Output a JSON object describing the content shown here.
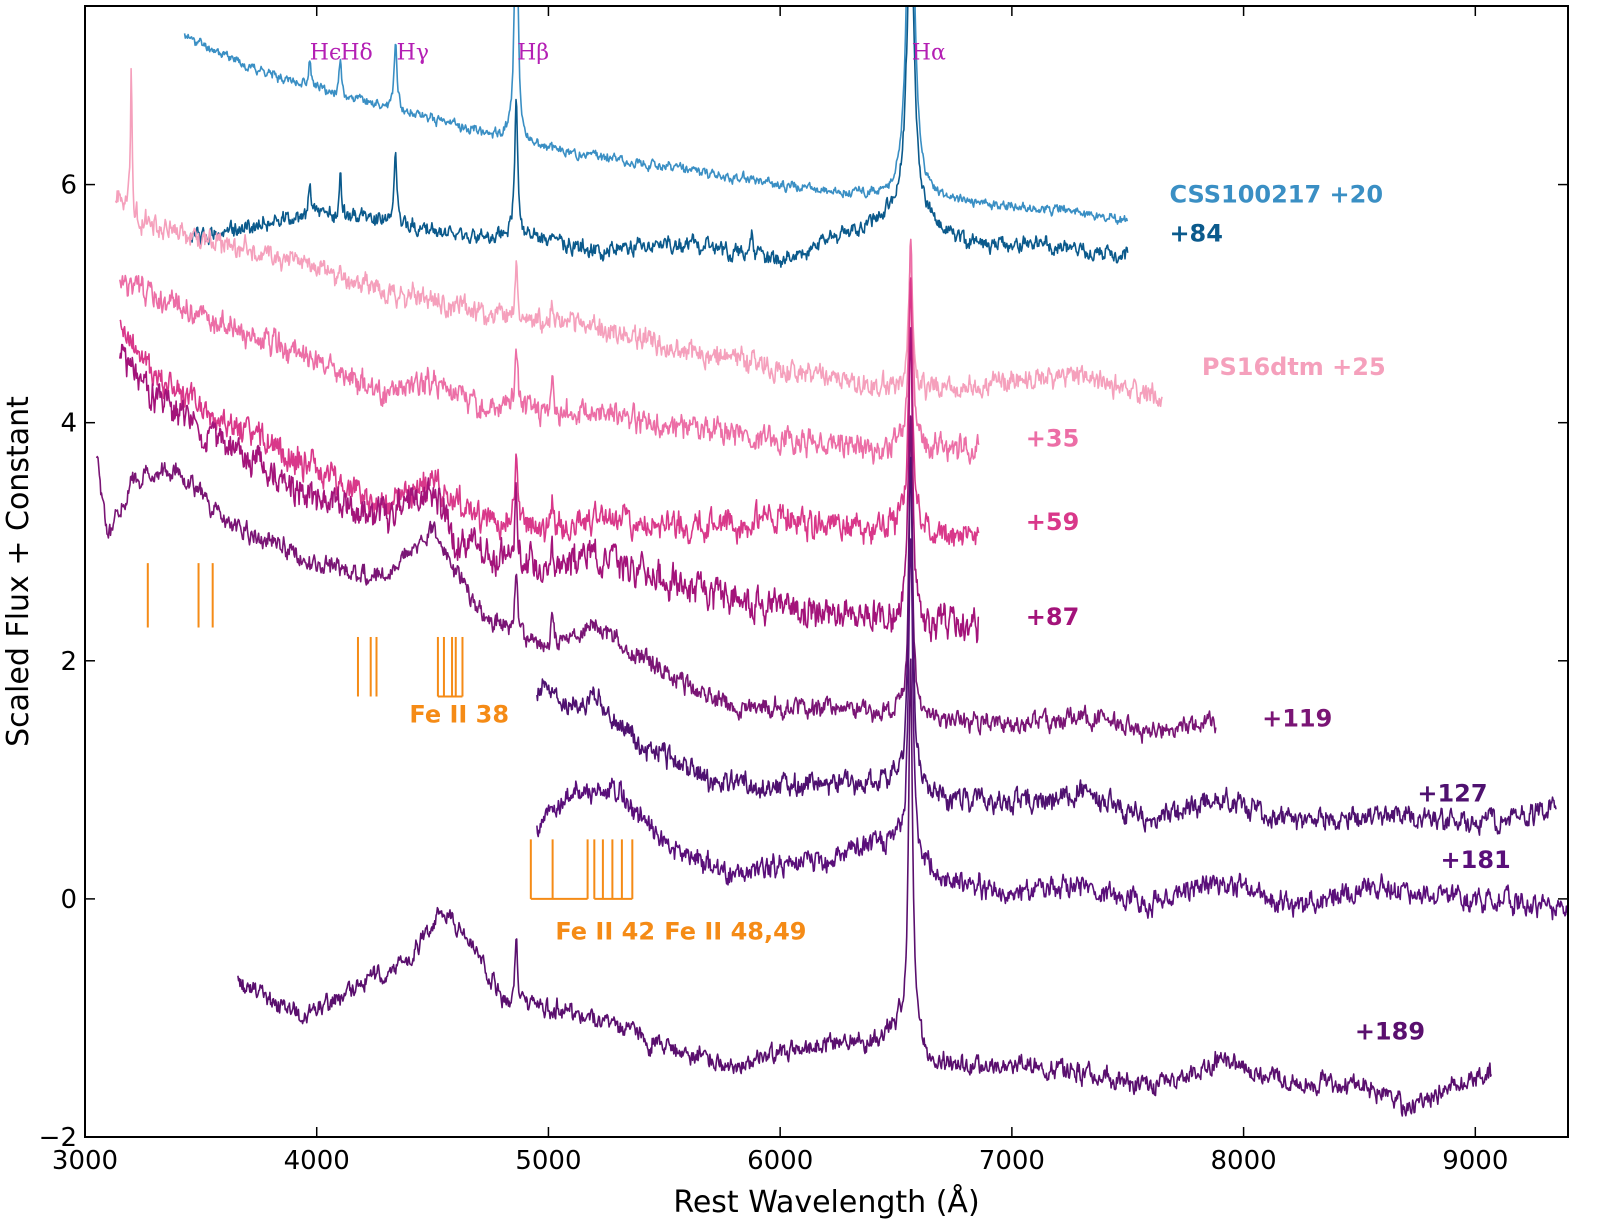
{
  "chart_data": {
    "type": "line",
    "title": "",
    "xlabel": "Rest Wavelength (Å)",
    "ylabel": "Scaled Flux + Constant",
    "xlim": [
      3000,
      9400
    ],
    "ylim": [
      -2.0,
      7.5
    ],
    "xticks": [
      3000,
      4000,
      5000,
      6000,
      7000,
      8000,
      9000
    ],
    "xtick_labels": [
      "3000",
      "4000",
      "5000",
      "6000",
      "7000",
      "8000",
      "9000"
    ],
    "yticks": [
      -2,
      0,
      2,
      4,
      6
    ],
    "ytick_labels": [
      "−2",
      "0",
      "2",
      "4",
      "6"
    ],
    "grid": false,
    "series": [
      {
        "name": "CSS100217 +20",
        "label": "CSS100217 +20",
        "label_x": 7680,
        "label_y": 5.85,
        "color": "#3a8fc4",
        "noise": 0.03,
        "seed": 11,
        "points": [
          [
            3430,
            7.25
          ],
          [
            3700,
            7.0
          ],
          [
            4000,
            6.8
          ],
          [
            4500,
            6.55
          ],
          [
            5000,
            6.3
          ],
          [
            5500,
            6.15
          ],
          [
            6000,
            6.0
          ],
          [
            6400,
            5.9
          ],
          [
            6800,
            5.85
          ],
          [
            7200,
            5.78
          ],
          [
            7500,
            5.7
          ]
        ],
        "lines": [
          [
            3970,
            0.22,
            14
          ],
          [
            4102,
            0.28,
            14
          ],
          [
            4340,
            0.55,
            16
          ],
          [
            4861,
            2.2,
            18
          ],
          [
            6563,
            3.6,
            35
          ]
        ]
      },
      {
        "name": "CSS100217 +84",
        "label": "+84",
        "label_x": 7680,
        "label_y": 5.52,
        "color": "#0b5a8c",
        "noise": 0.05,
        "seed": 12,
        "points": [
          [
            3450,
            5.55
          ],
          [
            3700,
            5.65
          ],
          [
            4000,
            5.75
          ],
          [
            4300,
            5.7
          ],
          [
            4600,
            5.55
          ],
          [
            4900,
            5.55
          ],
          [
            5200,
            5.45
          ],
          [
            5600,
            5.5
          ],
          [
            6000,
            5.35
          ],
          [
            6300,
            5.6
          ],
          [
            6550,
            5.8
          ],
          [
            6800,
            5.5
          ],
          [
            7100,
            5.5
          ],
          [
            7300,
            5.45
          ],
          [
            7500,
            5.4
          ]
        ],
        "lines": [
          [
            3970,
            0.3,
            12
          ],
          [
            4102,
            0.35,
            12
          ],
          [
            4340,
            0.6,
            14
          ],
          [
            4861,
            1.2,
            16
          ],
          [
            6563,
            2.6,
            35
          ],
          [
            5876,
            0.2,
            15
          ]
        ]
      },
      {
        "name": "PS16dtm +25",
        "label": "PS16dtm +25",
        "label_x": 7820,
        "label_y": 4.4,
        "color": "#f5a0bc",
        "noise": 0.07,
        "seed": 21,
        "points": [
          [
            3130,
            5.9
          ],
          [
            3250,
            5.7
          ],
          [
            3500,
            5.55
          ],
          [
            4000,
            5.3
          ],
          [
            4500,
            5.0
          ],
          [
            4800,
            4.9
          ],
          [
            5200,
            4.8
          ],
          [
            5600,
            4.6
          ],
          [
            6000,
            4.45
          ],
          [
            6400,
            4.3
          ],
          [
            6800,
            4.3
          ],
          [
            7300,
            4.4
          ],
          [
            7650,
            4.2
          ]
        ],
        "lines": [
          [
            4861,
            0.42,
            14
          ],
          [
            5016,
            0.2,
            12
          ],
          [
            6563,
            1.1,
            20
          ],
          [
            3200,
            1.2,
            8
          ]
        ]
      },
      {
        "name": "PS16dtm +35",
        "label": "+35",
        "label_x": 7060,
        "label_y": 3.8,
        "color": "#ec6ea6",
        "noise": 0.08,
        "seed": 31,
        "points": [
          [
            3150,
            5.2
          ],
          [
            3250,
            5.1
          ],
          [
            3500,
            4.9
          ],
          [
            4000,
            4.5
          ],
          [
            4300,
            4.25
          ],
          [
            4500,
            4.35
          ],
          [
            4700,
            4.15
          ],
          [
            5000,
            4.1
          ],
          [
            5200,
            4.1
          ],
          [
            5600,
            3.95
          ],
          [
            6000,
            3.85
          ],
          [
            6400,
            3.78
          ],
          [
            6550,
            3.8
          ],
          [
            6700,
            3.8
          ],
          [
            6860,
            3.78
          ]
        ],
        "lines": [
          [
            4861,
            0.55,
            14
          ],
          [
            5016,
            0.25,
            12
          ],
          [
            6563,
            1.75,
            20
          ]
        ]
      },
      {
        "name": "PS16dtm +59",
        "label": "+59",
        "label_x": 7060,
        "label_y": 3.1,
        "color": "#d9388a",
        "noise": 0.09,
        "seed": 41,
        "points": [
          [
            3150,
            4.8
          ],
          [
            3300,
            4.4
          ],
          [
            3500,
            4.1
          ],
          [
            4000,
            3.6
          ],
          [
            4300,
            3.3
          ],
          [
            4500,
            3.5
          ],
          [
            4700,
            3.2
          ],
          [
            5000,
            3.1
          ],
          [
            5200,
            3.2
          ],
          [
            5600,
            3.1
          ],
          [
            6000,
            3.2
          ],
          [
            6400,
            3.1
          ],
          [
            6500,
            3.15
          ],
          [
            6700,
            3.05
          ],
          [
            6860,
            3.05
          ]
        ],
        "lines": [
          [
            4861,
            0.55,
            14
          ],
          [
            5016,
            0.25,
            12
          ],
          [
            6563,
            2.1,
            20
          ]
        ]
      },
      {
        "name": "PS16dtm +87",
        "label": "+87",
        "label_x": 7060,
        "label_y": 2.3,
        "color": "#a3137a",
        "noise": 0.1,
        "seed": 51,
        "points": [
          [
            3150,
            4.6
          ],
          [
            3300,
            4.2
          ],
          [
            3500,
            3.95
          ],
          [
            4000,
            3.35
          ],
          [
            4300,
            3.2
          ],
          [
            4500,
            3.45
          ],
          [
            4600,
            3.0
          ],
          [
            5000,
            2.75
          ],
          [
            5200,
            2.9
          ],
          [
            5600,
            2.6
          ],
          [
            6000,
            2.45
          ],
          [
            6400,
            2.4
          ],
          [
            6500,
            2.35
          ],
          [
            6700,
            2.3
          ],
          [
            6860,
            2.28
          ]
        ],
        "lines": [
          [
            4861,
            0.55,
            14
          ],
          [
            5016,
            0.25,
            12
          ],
          [
            6563,
            2.5,
            20
          ]
        ]
      },
      {
        "name": "PS16dtm +119",
        "label": "+119",
        "label_x": 8080,
        "label_y": 1.45,
        "color": "#7a1575",
        "noise": 0.06,
        "seed": 61,
        "points": [
          [
            3050,
            3.7
          ],
          [
            3100,
            3.0
          ],
          [
            3200,
            3.5
          ],
          [
            3400,
            3.6
          ],
          [
            3600,
            3.2
          ],
          [
            4000,
            2.8
          ],
          [
            4300,
            2.7
          ],
          [
            4500,
            3.1
          ],
          [
            4700,
            2.4
          ],
          [
            5000,
            2.1
          ],
          [
            5200,
            2.3
          ],
          [
            5500,
            1.9
          ],
          [
            5800,
            1.6
          ],
          [
            6200,
            1.6
          ],
          [
            6500,
            1.55
          ],
          [
            6700,
            1.5
          ],
          [
            7000,
            1.45
          ],
          [
            7300,
            1.55
          ],
          [
            7600,
            1.4
          ],
          [
            7880,
            1.5
          ]
        ],
        "lines": [
          [
            4861,
            0.55,
            14
          ],
          [
            5016,
            0.25,
            12
          ],
          [
            6563,
            2.5,
            18
          ]
        ]
      },
      {
        "name": "PS16dtm +127",
        "label": "+127",
        "label_x": 8750,
        "label_y": 0.82,
        "color": "#4f1170",
        "noise": 0.07,
        "seed": 71,
        "points": [
          [
            4950,
            1.8
          ],
          [
            5100,
            1.6
          ],
          [
            5200,
            1.7
          ],
          [
            5400,
            1.3
          ],
          [
            5700,
            1.0
          ],
          [
            6000,
            0.95
          ],
          [
            6300,
            0.95
          ],
          [
            6500,
            1.0
          ],
          [
            6700,
            0.85
          ],
          [
            7000,
            0.8
          ],
          [
            7300,
            0.9
          ],
          [
            7600,
            0.65
          ],
          [
            7900,
            0.85
          ],
          [
            8200,
            0.65
          ],
          [
            8600,
            0.7
          ],
          [
            9000,
            0.65
          ],
          [
            9350,
            0.75
          ]
        ],
        "lines": [
          [
            6563,
            2.7,
            22
          ]
        ]
      },
      {
        "name": "PS16dtm +181",
        "label": "+181",
        "label_x": 8850,
        "label_y": 0.26,
        "color": "#5a0f7a",
        "noise": 0.07,
        "seed": 81,
        "points": [
          [
            4950,
            0.6
          ],
          [
            5100,
            0.9
          ],
          [
            5300,
            0.9
          ],
          [
            5500,
            0.45
          ],
          [
            5800,
            0.2
          ],
          [
            6200,
            0.35
          ],
          [
            6500,
            0.5
          ],
          [
            6700,
            0.15
          ],
          [
            7000,
            0.05
          ],
          [
            7300,
            0.1
          ],
          [
            7600,
            -0.05
          ],
          [
            7900,
            0.15
          ],
          [
            8200,
            -0.05
          ],
          [
            8600,
            0.1
          ],
          [
            9000,
            0.0
          ],
          [
            9400,
            -0.05
          ]
        ],
        "lines": [
          [
            6563,
            2.7,
            22
          ]
        ]
      },
      {
        "name": "PS16dtm +189",
        "label": "+189",
        "label_x": 8480,
        "label_y": -1.18,
        "color": "#5a0f6e",
        "noise": 0.06,
        "seed": 91,
        "points": [
          [
            3660,
            -0.7
          ],
          [
            3800,
            -0.85
          ],
          [
            3950,
            -1.0
          ],
          [
            4200,
            -0.7
          ],
          [
            4400,
            -0.5
          ],
          [
            4550,
            -0.1
          ],
          [
            4650,
            -0.3
          ],
          [
            4800,
            -0.85
          ],
          [
            5000,
            -0.9
          ],
          [
            5200,
            -1.0
          ],
          [
            5500,
            -1.25
          ],
          [
            5800,
            -1.4
          ],
          [
            6100,
            -1.25
          ],
          [
            6400,
            -1.2
          ],
          [
            6550,
            -1.05
          ],
          [
            6650,
            -1.4
          ],
          [
            7000,
            -1.4
          ],
          [
            7300,
            -1.45
          ],
          [
            7600,
            -1.6
          ],
          [
            7900,
            -1.35
          ],
          [
            8200,
            -1.55
          ],
          [
            8500,
            -1.55
          ],
          [
            8700,
            -1.75
          ],
          [
            9070,
            -1.45
          ]
        ],
        "lines": [
          [
            4861,
            0.55,
            12
          ],
          [
            6563,
            3.1,
            20
          ]
        ]
      }
    ],
    "annotations": {
      "balmer_labels": [
        {
          "text": "Hϵ",
          "x": 3970,
          "y": 7.05
        },
        {
          "text": "Hδ",
          "x": 4102,
          "y": 7.05
        },
        {
          "text": "Hγ",
          "x": 4345,
          "y": 7.05
        },
        {
          "text": "Hβ",
          "x": 4865,
          "y": 7.05
        },
        {
          "text": "Hα",
          "x": 6568,
          "y": 7.05
        }
      ],
      "balmer_color": "#b41fb4",
      "fe_color": "#f58b16",
      "fe_groups": [
        {
          "label": "",
          "x": [
            3271,
            3490,
            3551
          ],
          "y_top": 2.82,
          "y_bottom": 2.28,
          "bracket": false
        },
        {
          "label": "Fe II 38",
          "label_x": 4400,
          "label_y": 1.48,
          "x": [
            4178,
            4233,
            4258
          ],
          "y_top": 2.2,
          "y_bottom": 1.7,
          "bracket": false
        },
        {
          "label": "",
          "x": [
            4523,
            4549,
            4584,
            4600,
            4629
          ],
          "y_top": 2.2,
          "y_bottom": 1.7,
          "bracket": true
        },
        {
          "label": "Fe II 42",
          "label_x": 5030,
          "label_y": -0.34,
          "x": [
            4924,
            5018,
            5169
          ],
          "y_top": 0.5,
          "y_bottom": 0.0,
          "bracket": true
        },
        {
          "label": "Fe II 48,49",
          "label_x": 5500,
          "label_y": -0.34,
          "x": [
            5198,
            5235,
            5276,
            5317,
            5362
          ],
          "y_top": 0.5,
          "y_bottom": 0.0,
          "bracket": true
        }
      ]
    }
  }
}
